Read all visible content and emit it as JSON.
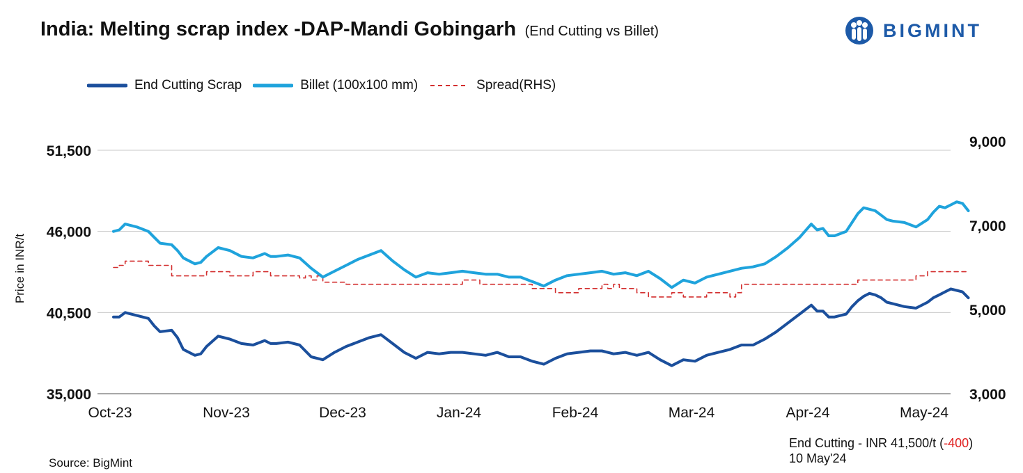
{
  "header": {
    "title": "India: Melting scrap index -DAP-Mandi Gobingarh",
    "subtitle": "(End Cutting vs Billet)",
    "logo_text": "BIGMINT"
  },
  "legend": {
    "scrap": "End Cutting Scrap",
    "billet": "Billet (100x100 mm)",
    "spread": "Spread(RHS)"
  },
  "axis": {
    "y_left_label": "Price in INR/t"
  },
  "footer": {
    "latest_prefix": "End Cutting - INR 41,500/t (",
    "latest_change": "-400",
    "latest_suffix": ")",
    "date": "10 May'24",
    "source": "Source: BigMint"
  },
  "colors": {
    "scrap": "#1b4f9c",
    "billet": "#1fa3dc",
    "spread": "#d32f2f",
    "grid": "#c8c8c8",
    "logo": "#1d5aa8"
  },
  "chart_data": {
    "type": "line",
    "x_ticks": [
      "Oct-23",
      "Nov-23",
      "Dec-23",
      "Jan-24",
      "Feb-24",
      "Mar-24",
      "Apr-24",
      "May-24"
    ],
    "ylim_left": [
      35000,
      51500
    ],
    "yticks_left": [
      "35,000",
      "40,500",
      "46,000",
      "51,500"
    ],
    "ylim_right": [
      3000,
      9000
    ],
    "yticks_right": [
      "3,000",
      "5,000",
      "7,000",
      "9,000"
    ],
    "grid": "horizontal",
    "legend_position": "top-left",
    "x_end": 7.35,
    "series": [
      {
        "name": "End Cutting Scrap",
        "axis": "left",
        "x": [
          0,
          0.05,
          0.1,
          0.2,
          0.3,
          0.35,
          0.4,
          0.5,
          0.55,
          0.6,
          0.7,
          0.75,
          0.8,
          0.9,
          1.0,
          1.1,
          1.2,
          1.3,
          1.35,
          1.4,
          1.5,
          1.6,
          1.7,
          1.8,
          1.9,
          2.0,
          2.1,
          2.2,
          2.3,
          2.4,
          2.5,
          2.6,
          2.7,
          2.8,
          2.9,
          3.0,
          3.1,
          3.2,
          3.3,
          3.4,
          3.5,
          3.6,
          3.7,
          3.8,
          3.9,
          4.0,
          4.1,
          4.2,
          4.3,
          4.4,
          4.5,
          4.6,
          4.7,
          4.8,
          4.9,
          5.0,
          5.1,
          5.2,
          5.3,
          5.4,
          5.5,
          5.6,
          5.7,
          5.8,
          5.9,
          6.0,
          6.05,
          6.1,
          6.15,
          6.2,
          6.3,
          6.35,
          6.4,
          6.45,
          6.5,
          6.55,
          6.6,
          6.65,
          6.7,
          6.8,
          6.9,
          7.0,
          7.05,
          7.1,
          7.15,
          7.2,
          7.25,
          7.3,
          7.35
        ],
        "values": [
          40200,
          40200,
          40500,
          40300,
          40100,
          39600,
          39200,
          39300,
          38800,
          38000,
          37600,
          37700,
          38200,
          38900,
          38700,
          38400,
          38300,
          38600,
          38400,
          38400,
          38500,
          38300,
          37500,
          37300,
          37800,
          38200,
          38500,
          38800,
          39000,
          38400,
          37800,
          37400,
          37800,
          37700,
          37800,
          37800,
          37700,
          37600,
          37800,
          37500,
          37500,
          37200,
          37000,
          37400,
          37700,
          37800,
          37900,
          37900,
          37700,
          37800,
          37600,
          37800,
          37300,
          36900,
          37300,
          37200,
          37600,
          37800,
          38000,
          38300,
          38300,
          38700,
          39200,
          39800,
          40400,
          41000,
          40600,
          40600,
          40200,
          40200,
          40400,
          40900,
          41300,
          41600,
          41800,
          41700,
          41500,
          41200,
          41100,
          40900,
          40800,
          41200,
          41500,
          41700,
          41900,
          42100,
          42000,
          41900,
          41500
        ]
      },
      {
        "name": "Billet (100x100 mm)",
        "axis": "left",
        "x": [
          0,
          0.05,
          0.1,
          0.2,
          0.3,
          0.35,
          0.4,
          0.5,
          0.55,
          0.6,
          0.7,
          0.75,
          0.8,
          0.9,
          1.0,
          1.1,
          1.2,
          1.3,
          1.35,
          1.4,
          1.5,
          1.6,
          1.7,
          1.8,
          1.9,
          2.0,
          2.1,
          2.2,
          2.3,
          2.4,
          2.5,
          2.6,
          2.7,
          2.8,
          2.9,
          3.0,
          3.1,
          3.2,
          3.3,
          3.4,
          3.5,
          3.6,
          3.7,
          3.8,
          3.9,
          4.0,
          4.1,
          4.2,
          4.3,
          4.4,
          4.5,
          4.6,
          4.7,
          4.8,
          4.9,
          5.0,
          5.1,
          5.2,
          5.3,
          5.4,
          5.5,
          5.6,
          5.7,
          5.8,
          5.9,
          6.0,
          6.05,
          6.1,
          6.15,
          6.2,
          6.3,
          6.35,
          6.4,
          6.45,
          6.5,
          6.55,
          6.6,
          6.65,
          6.7,
          6.8,
          6.9,
          7.0,
          7.05,
          7.1,
          7.15,
          7.2,
          7.25,
          7.3,
          7.35
        ],
        "values": [
          46000,
          46100,
          46500,
          46300,
          46000,
          45600,
          45200,
          45100,
          44700,
          44200,
          43800,
          43900,
          44300,
          44900,
          44700,
          44300,
          44200,
          44500,
          44300,
          44300,
          44400,
          44200,
          43500,
          42900,
          43300,
          43700,
          44100,
          44400,
          44700,
          44000,
          43400,
          42900,
          43200,
          43100,
          43200,
          43300,
          43200,
          43100,
          43100,
          42900,
          42900,
          42600,
          42300,
          42700,
          43000,
          43100,
          43200,
          43300,
          43100,
          43200,
          43000,
          43300,
          42800,
          42200,
          42700,
          42500,
          42900,
          43100,
          43300,
          43500,
          43600,
          43800,
          44300,
          44900,
          45600,
          46500,
          46100,
          46200,
          45700,
          45700,
          46000,
          46600,
          47200,
          47600,
          47500,
          47400,
          47100,
          46800,
          46700,
          46600,
          46300,
          46800,
          47300,
          47700,
          47600,
          47800,
          48000,
          47900,
          47400
        ]
      },
      {
        "name": "Spread(RHS)",
        "axis": "right",
        "style": "dashed",
        "x": [
          0,
          0.05,
          0.1,
          0.25,
          0.3,
          0.45,
          0.5,
          0.6,
          0.75,
          0.8,
          1.0,
          1.2,
          1.35,
          1.5,
          1.6,
          1.65,
          1.7,
          1.75,
          1.8,
          2.0,
          2.1,
          2.5,
          2.7,
          2.9,
          3.0,
          3.15,
          3.4,
          3.6,
          3.7,
          3.75,
          3.8,
          3.9,
          4.0,
          4.15,
          4.2,
          4.25,
          4.3,
          4.35,
          4.4,
          4.5,
          4.55,
          4.6,
          4.75,
          4.8,
          4.85,
          4.9,
          5.0,
          5.1,
          5.2,
          5.3,
          5.35,
          5.4,
          5.6,
          5.8,
          6.0,
          6.1,
          6.3,
          6.4,
          6.5,
          6.8,
          6.9,
          7.0,
          7.35
        ],
        "values": [
          6000,
          6050,
          6150,
          6150,
          6050,
          6050,
          5800,
          5800,
          5800,
          5900,
          5800,
          5900,
          5800,
          5800,
          5750,
          5800,
          5700,
          5800,
          5650,
          5600,
          5600,
          5600,
          5600,
          5600,
          5700,
          5600,
          5600,
          5500,
          5500,
          5500,
          5400,
          5400,
          5500,
          5500,
          5600,
          5500,
          5600,
          5500,
          5500,
          5400,
          5400,
          5300,
          5300,
          5400,
          5400,
          5300,
          5300,
          5400,
          5400,
          5300,
          5400,
          5600,
          5600,
          5600,
          5600,
          5600,
          5600,
          5700,
          5700,
          5700,
          5800,
          5900,
          5900
        ]
      }
    ]
  }
}
